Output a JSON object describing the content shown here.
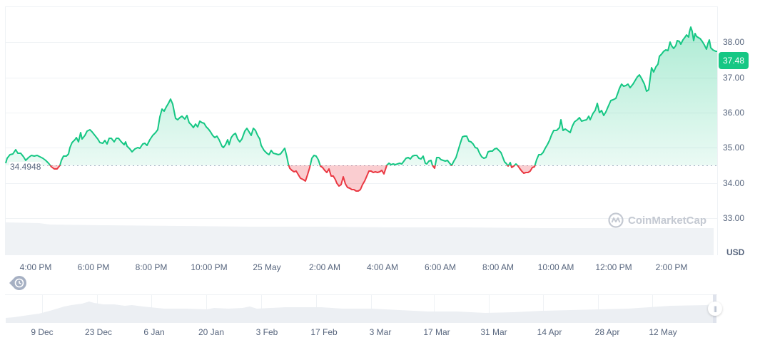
{
  "chart_data": {
    "type": "area",
    "title": "",
    "currency": "USD",
    "current_price": "37.48",
    "baseline": "34.4948",
    "ylim": [
      32.5,
      39.0
    ],
    "yticks": [
      "38.00",
      "37.00",
      "36.00",
      "35.00",
      "34.00",
      "33.00"
    ],
    "xticks": [
      "4:00 PM",
      "6:00 PM",
      "8:00 PM",
      "10:00 PM",
      "25 May",
      "2:00 AM",
      "4:00 AM",
      "6:00 AM",
      "8:00 AM",
      "10:00 AM",
      "12:00 PM",
      "2:00 PM"
    ],
    "grid": true,
    "colors": {
      "up": "#16c784",
      "down": "#ea3943",
      "axis_text": "#58667e",
      "grid": "#eff2f5"
    },
    "series": [
      {
        "name": "Price",
        "x": [
          "3:00 PM",
          "4:00 PM",
          "5:00 PM",
          "6:00 PM",
          "7:00 PM",
          "8:00 PM",
          "8:30 PM",
          "9:00 PM",
          "10:00 PM",
          "11:00 PM",
          "25 May",
          "1:00 AM",
          "2:00 AM",
          "3:00 AM",
          "3:30 AM",
          "4:00 AM",
          "5:00 AM",
          "6:00 AM",
          "7:00 AM",
          "8:00 AM",
          "9:00 AM",
          "10:00 AM",
          "11:00 AM",
          "12:00 PM",
          "1:00 PM",
          "2:00 PM",
          "3:00 PM",
          "3:30 PM"
        ],
        "values": [
          34.6,
          34.4,
          35.3,
          35.3,
          35.0,
          35.0,
          36.3,
          35.8,
          35.1,
          35.3,
          35.0,
          34.2,
          34.5,
          34.0,
          33.8,
          34.5,
          34.7,
          34.5,
          35.3,
          34.7,
          34.5,
          35.0,
          35.8,
          35.9,
          36.8,
          37.6,
          38.4,
          37.48
        ]
      }
    ],
    "navigator": {
      "xticks": [
        "9 Dec",
        "23 Dec",
        "6 Jan",
        "20 Jan",
        "3 Feb",
        "17 Feb",
        "3 Mar",
        "17 Mar",
        "31 Mar",
        "14 Apr",
        "28 Apr",
        "12 May"
      ]
    }
  },
  "watermark": "CoinMarketCap",
  "axis_unit": "USD"
}
